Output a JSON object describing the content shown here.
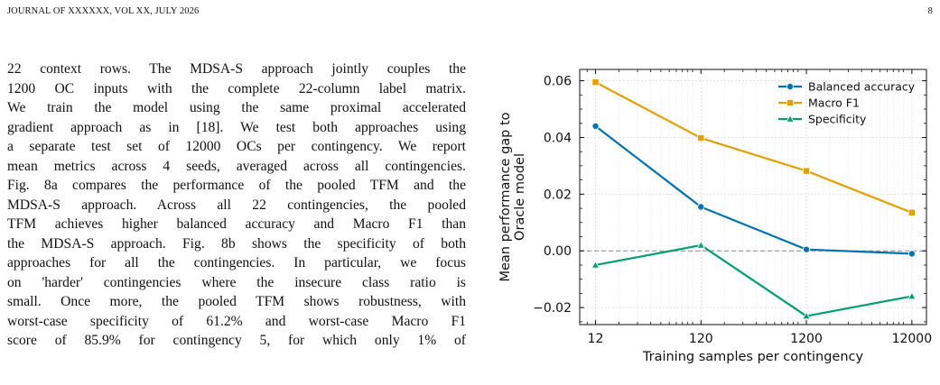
{
  "header": {
    "journal": "JOURNAL OF XXXXXX, VOL XX, JULY 2026",
    "page_number": "8"
  },
  "body_lines": [
    "22 context rows. The MDSA-S approach jointly couples the",
    "1200 OC inputs with the complete 22-column label matrix.",
    "We train the model using the same proximal accelerated",
    "gradient approach as in [18]. We test both approaches using",
    "a separate test set of 12000 OCs per contingency. We report",
    "mean metrics across 4 seeds, averaged across all contingencies.",
    "Fig. 8a compares the performance of the pooled TFM and the",
    "MDSA-S approach. Across all 22 contingencies, the pooled",
    "TFM achieves higher balanced accuracy and Macro F1 than",
    "the MDSA-S approach. Fig. 8b shows the specificity of both",
    "approaches for all the contingencies. In particular, we focus",
    "on 'harder' contingencies where the insecure class ratio is",
    "small. Once more, the pooled TFM shows robustness, with",
    "worst-case specificity of 61.2% and worst-case Macro F1",
    "score of 85.9% for contingency 5, for which only 1% of"
  ],
  "chart_data": {
    "type": "line",
    "xlabel": "Training samples per contingency",
    "ylabel_lines": [
      "Mean performance gap to",
      "Oracle model"
    ],
    "x": [
      12,
      120,
      1200,
      12000
    ],
    "x_tick_labels": [
      "12",
      "120",
      "1200",
      "12000"
    ],
    "x_scale": "log",
    "xlim": [
      8.5,
      16500
    ],
    "ylim": [
      -0.026,
      0.064
    ],
    "y_ticks": [
      -0.02,
      0.0,
      0.02,
      0.04,
      0.06
    ],
    "y_tick_labels": [
      "−0.02",
      "0.00",
      "0.02",
      "0.04",
      "0.06"
    ],
    "reference_line": 0.0,
    "grid": true,
    "legend_position": "top-right",
    "series": [
      {
        "name": "Balanced accuracy",
        "values": [
          0.044,
          0.0155,
          0.0005,
          -0.001
        ],
        "color": "#0173b2",
        "marker": "circle"
      },
      {
        "name": "Macro F1",
        "values": [
          0.0595,
          0.0398,
          0.0282,
          0.0135
        ],
        "color": "#e69f00",
        "marker": "square"
      },
      {
        "name": "Specificity",
        "values": [
          -0.005,
          0.002,
          -0.023,
          -0.016
        ],
        "color": "#029e73",
        "marker": "triangle"
      }
    ]
  }
}
